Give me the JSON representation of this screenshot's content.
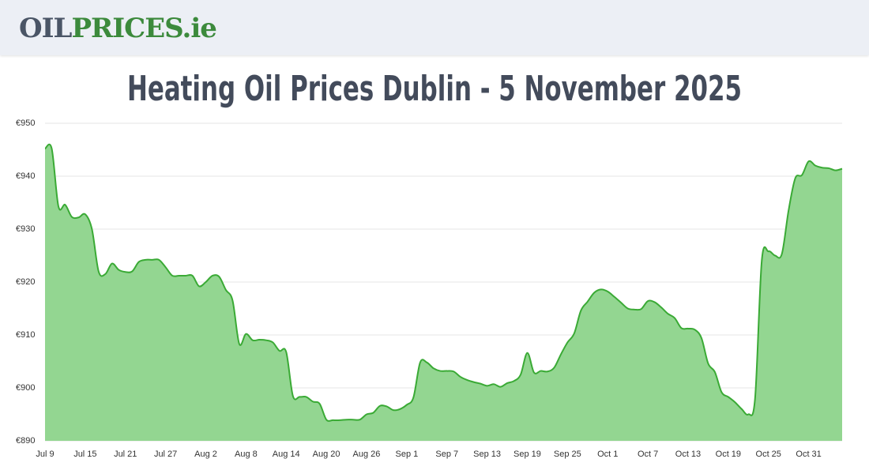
{
  "logo": {
    "part1": "OIL",
    "part2": "PRICES.ie"
  },
  "chart_data": {
    "type": "area",
    "title": "Heating Oil Prices Dublin - 5 November 2025",
    "categories": [
      "Jul 9",
      null,
      null,
      null,
      null,
      null,
      "Jul 15",
      null,
      null,
      null,
      null,
      null,
      "Jul 21",
      null,
      null,
      null,
      null,
      null,
      "Jul 27",
      null,
      null,
      null,
      null,
      null,
      "Aug 2",
      null,
      null,
      null,
      null,
      null,
      "Aug 8",
      null,
      null,
      null,
      null,
      null,
      "Aug 14",
      null,
      null,
      null,
      null,
      null,
      "Aug 20",
      null,
      null,
      null,
      null,
      null,
      "Aug 26",
      null,
      null,
      null,
      null,
      null,
      "Sep 1",
      null,
      null,
      null,
      null,
      null,
      "Sep 7",
      null,
      null,
      null,
      null,
      null,
      "Sep 13",
      null,
      null,
      null,
      null,
      null,
      "Sep 19",
      null,
      null,
      null,
      null,
      null,
      "Sep 25",
      null,
      null,
      null,
      null,
      null,
      "Oct 1",
      null,
      null,
      null,
      null,
      null,
      "Oct 7",
      null,
      null,
      null,
      null,
      null,
      "Oct 13",
      null,
      null,
      null,
      null,
      null,
      "Oct 19",
      null,
      null,
      null,
      null,
      null,
      "Oct 25",
      null,
      null,
      null,
      null,
      null,
      "Oct 31",
      null,
      null,
      null,
      null,
      null
    ],
    "series": [
      {
        "name": "Heating oil price",
        "color": "#3aaa35",
        "fill": "#93d691",
        "values": [
          945.2,
          945.2,
          934.3,
          934.6,
          932.3,
          932.2,
          932.8,
          930,
          922,
          921.5,
          923.5,
          922.3,
          921.9,
          922,
          923.8,
          924.2,
          924.2,
          924.2,
          922.8,
          921.2,
          921.2,
          921.2,
          921.2,
          919.2,
          920,
          921.2,
          921,
          918.5,
          916.5,
          908.3,
          910.2,
          909,
          909.1,
          909,
          908.6,
          907,
          906.8,
          898.5,
          898.3,
          898.3,
          897.4,
          897,
          894,
          893.9,
          893.9,
          894,
          894,
          894,
          895,
          895.3,
          896.6,
          896.5,
          895.8,
          896,
          896.8,
          898.2,
          904.8,
          904.8,
          903.7,
          903.2,
          903.2,
          903.1,
          902.1,
          901.5,
          901.1,
          900.8,
          900.4,
          900.7,
          900.2,
          900.9,
          901.3,
          902.5,
          906.6,
          902.9,
          903.2,
          903.1,
          903.8,
          906.3,
          908.6,
          910.3,
          914.6,
          916.3,
          918,
          918.6,
          918.2,
          917.2,
          916.1,
          915,
          914.8,
          914.9,
          916.4,
          916.2,
          915.2,
          914,
          913.2,
          911.3,
          911.2,
          911,
          909.4,
          904.6,
          903,
          899.2,
          898.3,
          897.3,
          896,
          895,
          898,
          924,
          925.8,
          925,
          925.3,
          933.5,
          939.6,
          940.2,
          942.8,
          942,
          941.6,
          941.5,
          941.1,
          941.4
        ]
      }
    ],
    "ylim": [
      890,
      950
    ],
    "yticks": [
      {
        "value": 890,
        "label": "€890"
      },
      {
        "value": 900,
        "label": "€900"
      },
      {
        "value": 910,
        "label": "€910"
      },
      {
        "value": 920,
        "label": "€920"
      },
      {
        "value": 930,
        "label": "€930"
      },
      {
        "value": 940,
        "label": "€940"
      },
      {
        "value": 950,
        "label": "€950"
      }
    ],
    "grid": true
  }
}
